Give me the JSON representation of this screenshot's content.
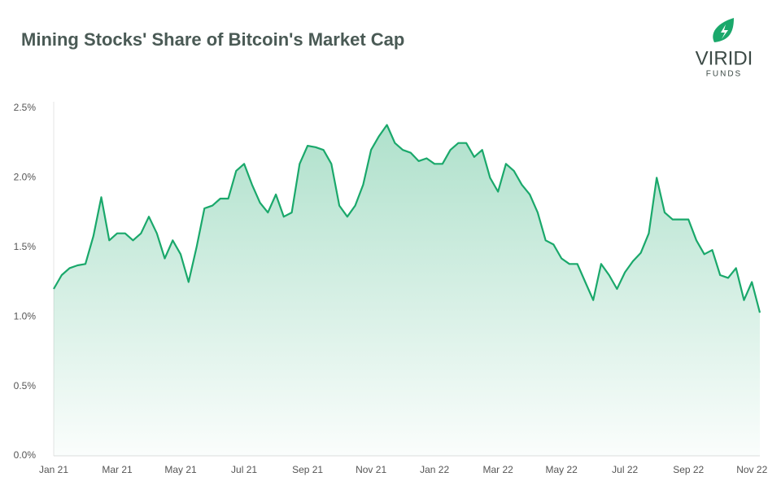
{
  "chart_data": {
    "type": "area",
    "title": "Mining Stocks' Share of Bitcoin's Market Cap",
    "logo": {
      "name": "VIRIDI",
      "sub": "FUNDS"
    },
    "color": "#1aa86b",
    "grid": false,
    "categories": [
      "Jan 21",
      null,
      null,
      null,
      null,
      null,
      null,
      null,
      "Mar 21",
      null,
      null,
      null,
      null,
      null,
      null,
      null,
      "May 21",
      null,
      null,
      null,
      null,
      null,
      null,
      null,
      "Jul 21",
      null,
      null,
      null,
      null,
      null,
      null,
      null,
      "Sep 21",
      null,
      null,
      null,
      null,
      null,
      null,
      null,
      "Nov 21",
      null,
      null,
      null,
      null,
      null,
      null,
      null,
      "Jan 22",
      null,
      null,
      null,
      null,
      null,
      null,
      null,
      "Mar 22",
      null,
      null,
      null,
      null,
      null,
      null,
      null,
      "May 22",
      null,
      null,
      null,
      null,
      null,
      null,
      null,
      "Jul 22",
      null,
      null,
      null,
      null,
      null,
      null,
      null,
      "Sep 22",
      null,
      null,
      null,
      null,
      null,
      null,
      null,
      "Nov 22",
      null
    ],
    "values": [
      1.2,
      1.3,
      1.35,
      1.37,
      1.38,
      1.58,
      1.86,
      1.55,
      1.6,
      1.6,
      1.55,
      1.6,
      1.72,
      1.6,
      1.42,
      1.55,
      1.45,
      1.25,
      1.5,
      1.78,
      1.8,
      1.85,
      1.85,
      2.05,
      2.1,
      1.95,
      1.82,
      1.75,
      1.88,
      1.72,
      1.75,
      2.1,
      2.23,
      2.22,
      2.2,
      2.1,
      1.8,
      1.72,
      1.8,
      1.95,
      2.2,
      2.3,
      2.38,
      2.25,
      2.2,
      2.18,
      2.12,
      2.14,
      2.1,
      2.1,
      2.2,
      2.25,
      2.25,
      2.15,
      2.2,
      2.0,
      1.9,
      2.1,
      2.05,
      1.95,
      1.88,
      1.75,
      1.55,
      1.52,
      1.42,
      1.38,
      1.38,
      1.25,
      1.12,
      1.38,
      1.3,
      1.2,
      1.32,
      1.4,
      1.46,
      1.6,
      2.0,
      1.75,
      1.7,
      1.7,
      1.7,
      1.55,
      1.45,
      1.48,
      1.3,
      1.28,
      1.35,
      1.12,
      1.25,
      1.03
    ],
    "ylim": [
      0,
      2.5
    ],
    "yticks": [
      {
        "value": 0,
        "label": "0.0%"
      },
      {
        "value": 0.5,
        "label": "0.5%"
      },
      {
        "value": 1,
        "label": "1.0%"
      },
      {
        "value": 1.5,
        "label": "1.5%"
      },
      {
        "value": 2,
        "label": "2.0%"
      },
      {
        "value": 2.5,
        "label": "2.5%"
      }
    ]
  }
}
